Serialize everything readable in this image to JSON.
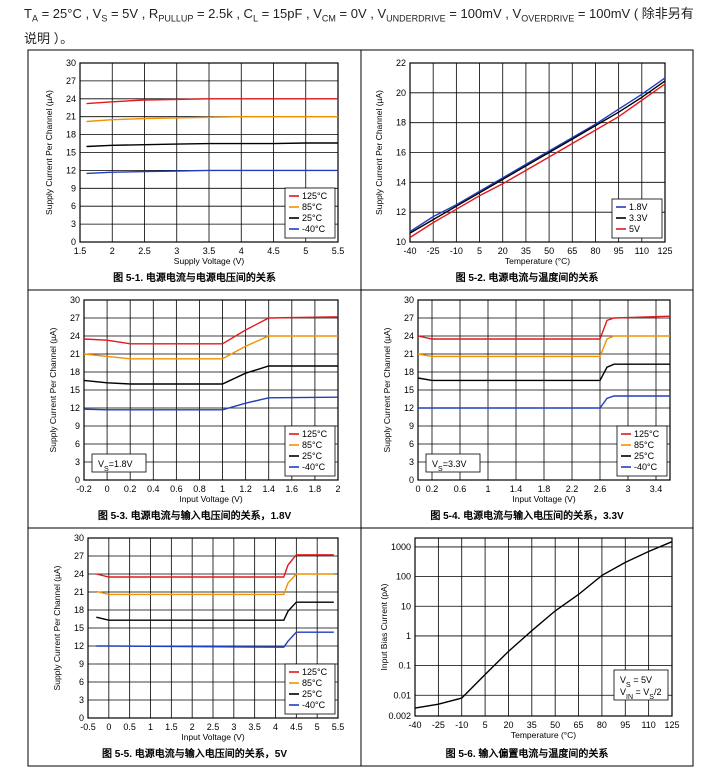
{
  "header": {
    "parts": [
      {
        "text": "T"
      },
      {
        "sub": "A"
      },
      {
        "text": " = 25°C , V"
      },
      {
        "sub": "S"
      },
      {
        "text": " = 5V , R"
      },
      {
        "sub": "PULLUP"
      },
      {
        "text": " = 2.5k , C"
      },
      {
        "sub": "L"
      },
      {
        "text": " = 15pF , V"
      },
      {
        "sub": "CM"
      },
      {
        "text": " = 0V , V"
      },
      {
        "sub": "UNDERDRIVE"
      },
      {
        "text": " = 100mV , V"
      },
      {
        "sub": "OVERDRIVE"
      },
      {
        "text": " = 100mV ( 除非另有说明 ）。"
      }
    ]
  },
  "chart_data": [
    {
      "type": "line",
      "caption": "图 5-1. 电源电流与电源电压间的关系",
      "xlabel": "Supply Voltage (V)",
      "ylabel": "Supply Current Per Channel (µA)",
      "x": [
        1.6,
        2,
        2.5,
        3,
        3.5,
        4,
        4.5,
        5,
        5.5
      ],
      "xlim": [
        1.5,
        5.5
      ],
      "xticks": [
        1.5,
        2,
        2.5,
        3,
        3.5,
        4,
        4.5,
        5,
        5.5
      ],
      "ylim": [
        0,
        30
      ],
      "yticks": [
        0,
        3,
        6,
        9,
        12,
        15,
        18,
        21,
        24,
        27,
        30
      ],
      "grid": true,
      "legend": "lower right",
      "series": [
        {
          "name": "125°C",
          "color": "#e3191c",
          "values": [
            23.2,
            23.5,
            23.8,
            23.9,
            24,
            24,
            24,
            24,
            24
          ]
        },
        {
          "name": "85°C",
          "color": "#f39200",
          "values": [
            20.2,
            20.5,
            20.7,
            20.8,
            20.9,
            21,
            21,
            21,
            21
          ]
        },
        {
          "name": "25°C",
          "color": "#000000",
          "values": [
            16,
            16.2,
            16.3,
            16.4,
            16.5,
            16.5,
            16.5,
            16.6,
            16.6
          ]
        },
        {
          "name": "-40°C",
          "color": "#1f3fbf",
          "values": [
            11.5,
            11.7,
            11.8,
            11.9,
            12,
            12,
            12,
            12,
            12
          ]
        }
      ]
    },
    {
      "type": "line",
      "caption": "图 5-2. 电源电流与温度间的关系",
      "xlabel": "Temperature (°C)",
      "ylabel": "Supply Current Per Channel (µA)",
      "x": [
        -40,
        -25,
        -10,
        5,
        20,
        35,
        50,
        65,
        80,
        95,
        110,
        125
      ],
      "xlim": [
        -40,
        125
      ],
      "xticks": [
        -40,
        -25,
        -10,
        5,
        20,
        35,
        50,
        65,
        80,
        95,
        110,
        125
      ],
      "ylim": [
        10,
        22
      ],
      "yticks": [
        10,
        12,
        14,
        16,
        18,
        20,
        22
      ],
      "grid": true,
      "legend": "lower right",
      "series": [
        {
          "name": "1.8V",
          "color": "#1f3fbf",
          "values": [
            10.7,
            11.7,
            12.5,
            13.4,
            14.3,
            15.2,
            16.1,
            17,
            17.9,
            18.9,
            19.9,
            21
          ]
        },
        {
          "name": "3.3V",
          "color": "#000000",
          "values": [
            10.6,
            11.5,
            12.4,
            13.3,
            14.2,
            15.1,
            16,
            16.9,
            17.8,
            18.7,
            19.7,
            20.8
          ]
        },
        {
          "name": "5V",
          "color": "#e3191c",
          "values": [
            10.3,
            11.3,
            12.2,
            13.1,
            13.9,
            14.8,
            15.7,
            16.6,
            17.5,
            18.4,
            19.5,
            20.6
          ]
        }
      ]
    },
    {
      "type": "line",
      "caption": "图 5-3. 电源电流与输入电压间的关系，1.8V",
      "xlabel": "Input Voltage (V)",
      "ylabel": "Supply Current Per Channel (µA)",
      "x": [
        -0.2,
        0,
        0.2,
        1,
        1.2,
        1.4,
        2
      ],
      "xlim": [
        -0.2,
        2
      ],
      "xticks": [
        -0.2,
        0,
        0.2,
        0.4,
        0.6,
        0.8,
        1,
        1.2,
        1.4,
        1.6,
        1.8,
        2
      ],
      "ylim": [
        0,
        30
      ],
      "yticks": [
        0,
        3,
        6,
        9,
        12,
        15,
        18,
        21,
        24,
        27,
        30
      ],
      "grid": true,
      "legend": "lower right",
      "annotation": [
        [
          {
            "text": "V"
          },
          {
            "sub": "S"
          },
          {
            "text": "=1.8V"
          }
        ]
      ],
      "series": [
        {
          "name": "125°C",
          "color": "#e3191c",
          "values": [
            23.5,
            23.3,
            22.7,
            22.7,
            25,
            27,
            27.2
          ]
        },
        {
          "name": "85°C",
          "color": "#f39200",
          "values": [
            21,
            20.6,
            20.2,
            20.2,
            22.3,
            24,
            24
          ]
        },
        {
          "name": "25°C",
          "color": "#000000",
          "values": [
            16.6,
            16.2,
            16,
            16,
            17.8,
            19,
            19
          ]
        },
        {
          "name": "-40°C",
          "color": "#1f3fbf",
          "values": [
            11.8,
            11.7,
            11.7,
            11.7,
            12.8,
            13.7,
            13.8
          ]
        }
      ]
    },
    {
      "type": "line",
      "caption": "图 5-4. 电源电流与输入电压间的关系，3.3V",
      "xlabel": "Input Voltage (V)",
      "ylabel": "Supply Current Per Channel (µA)",
      "x": [
        0,
        0.2,
        2.6,
        2.7,
        2.8,
        3.6
      ],
      "xlim": [
        0,
        3.6
      ],
      "xticks": [
        0,
        0.2,
        0.6,
        1,
        1.4,
        1.8,
        2.2,
        2.6,
        3,
        3.4
      ],
      "ylim": [
        0,
        30
      ],
      "yticks": [
        0,
        3,
        6,
        9,
        12,
        15,
        18,
        21,
        24,
        27,
        30
      ],
      "grid": true,
      "legend": "lower right",
      "annotation": [
        [
          {
            "text": "V"
          },
          {
            "sub": "S"
          },
          {
            "text": "=3.3V"
          }
        ]
      ],
      "series": [
        {
          "name": "125°C",
          "color": "#e3191c",
          "values": [
            24,
            23.5,
            23.5,
            26.6,
            27,
            27.3
          ]
        },
        {
          "name": "85°C",
          "color": "#f39200",
          "values": [
            21,
            20.6,
            20.6,
            23.5,
            24,
            24
          ]
        },
        {
          "name": "25°C",
          "color": "#000000",
          "values": [
            17,
            16.6,
            16.6,
            18.8,
            19.3,
            19.3
          ]
        },
        {
          "name": "-40°C",
          "color": "#1f3fbf",
          "values": [
            12,
            12,
            12,
            13.6,
            14,
            14
          ]
        }
      ]
    },
    {
      "type": "line",
      "caption": "图 5-5. 电源电流与输入电压间的关系，5V",
      "xlabel": "Input Voltage (V)",
      "ylabel": "Supply Current Per Channel (µA)",
      "x": [
        -0.3,
        0,
        4.2,
        4.3,
        4.5,
        5.4
      ],
      "xlim": [
        -0.5,
        5.5
      ],
      "xticks": [
        -0.5,
        0,
        0.5,
        1,
        1.5,
        2,
        2.5,
        3,
        3.5,
        4,
        4.5,
        5,
        5.5
      ],
      "ylim": [
        0,
        30
      ],
      "yticks": [
        0,
        3,
        6,
        9,
        12,
        15,
        18,
        21,
        24,
        27,
        30
      ],
      "grid": true,
      "legend": "lower right",
      "series": [
        {
          "name": "125°C",
          "color": "#e3191c",
          "values": [
            24,
            23.5,
            23.5,
            25.5,
            27.2,
            27.2
          ]
        },
        {
          "name": "85°C",
          "color": "#f39200",
          "values": [
            21.1,
            20.6,
            20.6,
            22.5,
            24,
            24
          ]
        },
        {
          "name": "25°C",
          "color": "#000000",
          "values": [
            16.8,
            16.3,
            16.3,
            17.8,
            19.3,
            19.3
          ]
        },
        {
          "name": "-40°C",
          "color": "#1f3fbf",
          "values": [
            12,
            12,
            11.8,
            12.8,
            14.3,
            14.3
          ]
        }
      ]
    },
    {
      "type": "line",
      "caption": "图 5-6. 输入偏置电流与温度间的关系",
      "xlabel": "Temperature (°C)",
      "ylabel": "Input Bias Current (pA)",
      "x": [
        -40,
        -25,
        -10,
        5,
        20,
        35,
        50,
        65,
        80,
        95,
        110,
        125
      ],
      "xlim": [
        -40,
        125
      ],
      "xticks": [
        -40,
        -25,
        -10,
        5,
        20,
        35,
        50,
        65,
        80,
        95,
        110,
        125
      ],
      "ylim": [
        0.002,
        2000
      ],
      "yticks": [
        0.002,
        0.01,
        0.1,
        1,
        10,
        100,
        1000
      ],
      "log_y": true,
      "grid": true,
      "annotation": [
        [
          {
            "text": "V"
          },
          {
            "sub": "S"
          },
          {
            "text": " = 5V"
          }
        ],
        [
          {
            "text": "V"
          },
          {
            "sub": "IN"
          },
          {
            "text": " = V"
          },
          {
            "sub": "S"
          },
          {
            "text": "/2"
          }
        ]
      ],
      "series": [
        {
          "color": "#000000",
          "values": [
            0.0037,
            0.005,
            0.008,
            0.05,
            0.3,
            1.5,
            7,
            25,
            110,
            300,
            700,
            1500
          ]
        }
      ]
    }
  ]
}
